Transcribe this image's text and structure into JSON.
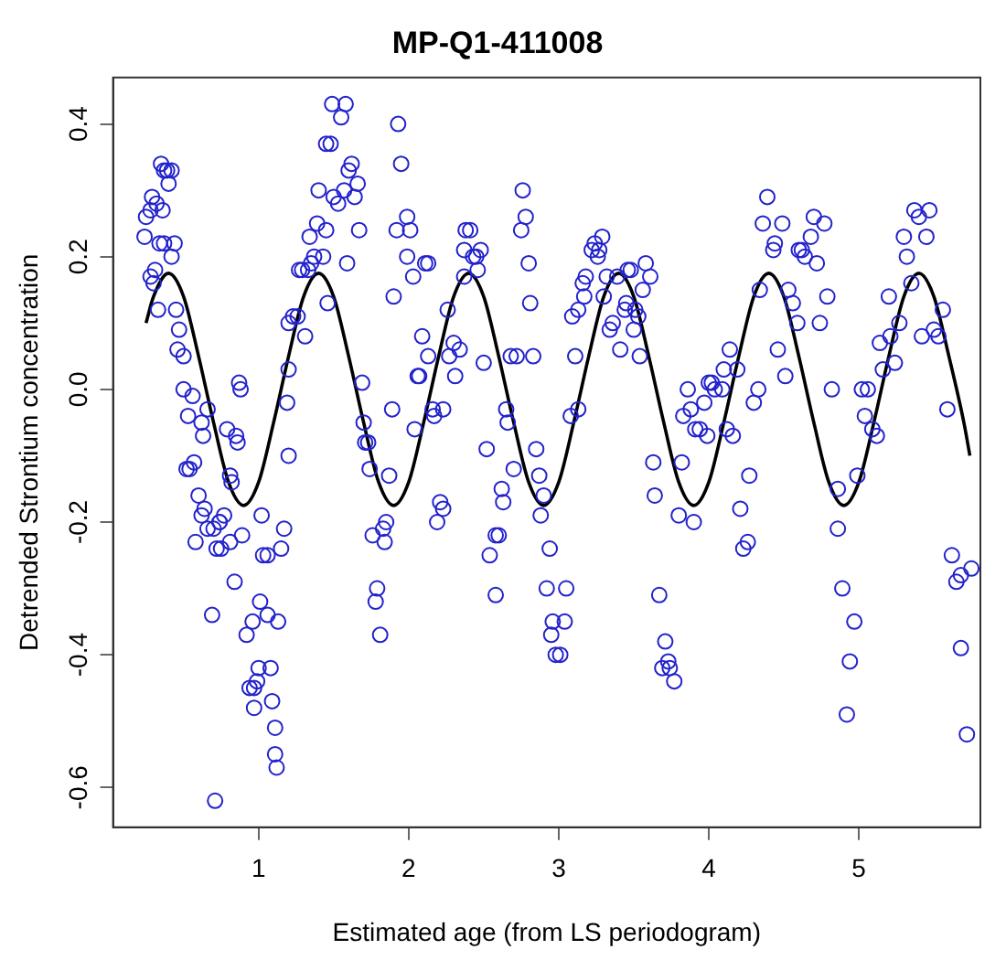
{
  "chart_data": {
    "type": "scatter",
    "title": "MP-Q1-411008",
    "xlabel": "Estimated age (from LS periodogram)",
    "ylabel": "Detrended Strontium concentration",
    "xlim": [
      0.03,
      5.81
    ],
    "ylim": [
      -0.66,
      0.47
    ],
    "xticks": [
      1,
      2,
      3,
      4,
      5
    ],
    "yticks": [
      -0.6,
      -0.4,
      -0.2,
      {
        "value": 0,
        "label": "0.0"
      },
      0.2,
      0.4
    ],
    "grid": false,
    "legend": false,
    "marker": "circle",
    "series": [
      {
        "type": "scatter",
        "color": "#2222cc",
        "x": [
          0.35,
          0.39,
          0.42,
          0.37,
          0.4,
          0.29,
          0.25,
          0.28,
          0.32,
          0.36,
          0.24,
          0.34,
          0.37,
          0.44,
          0.42,
          0.31,
          0.3,
          0.28,
          0.33,
          0.45,
          0.47,
          0.46,
          0.5,
          0.5,
          0.56,
          0.53,
          0.66,
          0.62,
          0.63,
          0.54,
          0.57,
          0.52,
          0.6,
          0.64,
          0.62,
          0.66,
          0.58,
          0.7,
          0.74,
          0.77,
          0.79,
          0.85,
          0.87,
          0.88,
          0.86,
          0.81,
          0.82,
          0.74,
          0.72,
          0.75,
          0.81,
          0.89,
          1.02,
          1.03,
          1.06,
          1.17,
          1.15,
          0.84,
          0.69,
          1.01,
          1.06,
          1.13,
          0.96,
          0.92,
          0.94,
          0.97,
          0.99,
          1.0,
          1.08,
          0.97,
          1.09,
          1.11,
          1.11,
          1.12,
          0.71,
          1.19,
          1.2,
          1.2,
          1.2,
          1.23,
          1.26,
          1.31,
          1.27,
          1.29,
          1.33,
          1.35,
          1.37,
          1.34,
          1.39,
          1.4,
          1.49,
          1.58,
          1.55,
          1.45,
          1.48,
          1.62,
          1.6,
          1.66,
          1.57,
          1.5,
          1.53,
          1.64,
          1.67,
          1.45,
          1.43,
          1.59,
          1.46,
          1.69,
          1.7,
          1.71,
          1.73,
          1.74,
          1.76,
          1.83,
          1.85,
          1.84,
          1.79,
          1.78,
          1.81,
          1.87,
          1.89,
          1.93,
          1.95,
          1.92,
          1.99,
          2.01,
          1.99,
          2.03,
          1.9,
          2.11,
          2.13,
          2.09,
          2.06,
          2.07,
          2.13,
          2.04,
          2.17,
          2.23,
          2.16,
          2.21,
          2.19,
          2.23,
          2.26,
          2.3,
          2.31,
          2.34,
          2.27,
          2.38,
          2.41,
          2.37,
          2.43,
          2.45,
          2.48,
          2.46,
          2.37,
          2.5,
          2.52,
          2.62,
          2.63,
          2.58,
          2.6,
          2.54,
          2.58,
          2.65,
          2.66,
          2.7,
          2.68,
          2.72,
          2.83,
          2.76,
          2.78,
          2.75,
          2.8,
          2.81,
          2.85,
          2.87,
          2.9,
          2.88,
          2.94,
          2.92,
          3.05,
          2.96,
          3.04,
          2.95,
          2.98,
          3.01,
          3.08,
          3.13,
          3.11,
          3.09,
          3.13,
          3.16,
          3.18,
          3.17,
          3.22,
          3.24,
          3.27,
          3.29,
          3.26,
          3.32,
          3.3,
          3.34,
          3.36,
          3.39,
          3.44,
          3.45,
          3.41,
          3.46,
          3.48,
          3.58,
          3.61,
          3.56,
          3.51,
          3.53,
          3.5,
          3.54,
          3.63,
          3.64,
          3.67,
          3.71,
          3.69,
          3.73,
          3.74,
          3.77,
          3.8,
          3.82,
          3.9,
          3.83,
          3.86,
          3.88,
          3.91,
          3.94,
          3.97,
          3.99,
          4.0,
          4.02,
          4.04,
          4.09,
          4.1,
          4.14,
          4.12,
          4.16,
          4.19,
          4.21,
          4.26,
          4.23,
          4.27,
          4.3,
          4.33,
          4.34,
          4.36,
          4.39,
          4.43,
          4.44,
          4.49,
          4.46,
          4.51,
          4.53,
          4.56,
          4.59,
          4.6,
          4.62,
          4.64,
          4.68,
          4.7,
          4.72,
          4.77,
          4.74,
          4.79,
          4.82,
          4.86,
          4.86,
          4.89,
          4.92,
          4.94,
          4.97,
          4.99,
          5.02,
          5.06,
          5.04,
          5.09,
          5.12,
          5.14,
          5.16,
          5.2,
          5.21,
          5.24,
          5.27,
          5.3,
          5.32,
          5.35,
          5.37,
          5.4,
          5.45,
          5.47,
          5.42,
          5.5,
          5.53,
          5.56,
          5.59,
          5.62,
          5.65,
          5.68,
          5.75,
          5.68,
          5.72
        ],
        "values": [
          0.34,
          0.33,
          0.33,
          0.33,
          0.31,
          0.29,
          0.26,
          0.27,
          0.28,
          0.27,
          0.23,
          0.22,
          0.22,
          0.22,
          0.2,
          0.18,
          0.16,
          0.17,
          0.12,
          0.12,
          0.09,
          0.06,
          0.05,
          0.0,
          -0.01,
          -0.04,
          -0.03,
          -0.05,
          -0.07,
          -0.12,
          -0.11,
          -0.12,
          -0.16,
          -0.18,
          -0.19,
          -0.21,
          -0.23,
          -0.21,
          -0.2,
          -0.19,
          -0.06,
          -0.07,
          0.01,
          0.0,
          -0.08,
          -0.13,
          -0.14,
          -0.2,
          -0.24,
          -0.24,
          -0.23,
          -0.22,
          -0.19,
          -0.25,
          -0.25,
          -0.21,
          -0.24,
          -0.29,
          -0.34,
          -0.32,
          -0.34,
          -0.35,
          -0.35,
          -0.37,
          -0.45,
          -0.45,
          -0.44,
          -0.42,
          -0.42,
          -0.48,
          -0.47,
          -0.51,
          -0.55,
          -0.57,
          -0.62,
          -0.02,
          0.03,
          -0.1,
          0.1,
          0.11,
          0.11,
          0.08,
          0.18,
          0.18,
          0.18,
          0.19,
          0.2,
          0.23,
          0.25,
          0.3,
          0.43,
          0.43,
          0.41,
          0.37,
          0.37,
          0.34,
          0.33,
          0.31,
          0.3,
          0.29,
          0.28,
          0.29,
          0.24,
          0.24,
          0.2,
          0.19,
          0.13,
          0.01,
          -0.05,
          -0.08,
          -0.08,
          -0.12,
          -0.22,
          -0.21,
          -0.2,
          -0.23,
          -0.3,
          -0.32,
          -0.37,
          -0.13,
          -0.03,
          0.4,
          0.34,
          0.24,
          0.26,
          0.24,
          0.2,
          0.17,
          0.14,
          0.19,
          0.19,
          0.08,
          0.02,
          0.02,
          0.05,
          -0.06,
          -0.04,
          -0.03,
          -0.03,
          -0.17,
          -0.2,
          -0.18,
          0.12,
          0.07,
          0.02,
          0.06,
          0.05,
          0.24,
          0.24,
          0.21,
          0.2,
          0.2,
          0.21,
          0.18,
          0.17,
          0.04,
          -0.09,
          -0.15,
          -0.17,
          -0.22,
          -0.22,
          -0.25,
          -0.31,
          -0.03,
          -0.05,
          -0.12,
          0.05,
          0.05,
          0.05,
          0.3,
          0.26,
          0.24,
          0.19,
          0.13,
          -0.09,
          -0.13,
          -0.16,
          -0.19,
          -0.24,
          -0.3,
          -0.3,
          -0.35,
          -0.35,
          -0.37,
          -0.4,
          -0.4,
          -0.04,
          -0.03,
          0.05,
          0.11,
          0.12,
          0.16,
          0.17,
          0.14,
          0.21,
          0.22,
          0.21,
          0.23,
          0.2,
          0.17,
          0.14,
          0.09,
          0.1,
          0.17,
          0.12,
          0.13,
          0.06,
          0.18,
          0.18,
          0.19,
          0.17,
          0.15,
          0.12,
          0.11,
          0.09,
          0.05,
          -0.11,
          -0.16,
          -0.31,
          -0.38,
          -0.42,
          -0.41,
          -0.42,
          -0.44,
          -0.19,
          -0.11,
          -0.2,
          -0.04,
          0.0,
          -0.03,
          -0.06,
          -0.06,
          -0.02,
          -0.07,
          0.01,
          0.01,
          0.0,
          0.0,
          0.03,
          0.06,
          -0.06,
          -0.07,
          0.03,
          -0.18,
          -0.23,
          -0.24,
          -0.13,
          -0.02,
          0.0,
          0.15,
          0.25,
          0.29,
          0.21,
          0.22,
          0.25,
          0.06,
          0.02,
          0.15,
          0.13,
          0.1,
          0.21,
          0.21,
          0.2,
          0.23,
          0.26,
          0.19,
          0.25,
          0.1,
          0.14,
          0.0,
          -0.15,
          -0.21,
          -0.3,
          -0.49,
          -0.41,
          -0.35,
          -0.13,
          0.0,
          0.0,
          -0.04,
          -0.06,
          -0.07,
          0.07,
          0.03,
          0.14,
          0.08,
          0.04,
          0.1,
          0.23,
          0.2,
          0.16,
          0.27,
          0.26,
          0.23,
          0.27,
          0.08,
          0.09,
          0.08,
          0.12,
          -0.03,
          -0.25,
          -0.29,
          -0.28,
          -0.27,
          -0.39,
          -0.52
        ]
      },
      {
        "type": "line",
        "color": "#000000",
        "line_style": "solid",
        "marker": "none",
        "x": [
          0.25,
          0.3,
          0.4,
          0.5,
          0.6,
          0.7,
          0.8,
          0.9,
          1.0,
          1.1,
          1.2,
          1.3,
          1.4,
          1.5,
          1.6,
          1.7,
          1.8,
          1.9,
          2.0,
          2.1,
          2.2,
          2.3,
          2.4,
          2.5,
          2.6,
          2.7,
          2.8,
          2.9,
          3.0,
          3.1,
          3.2,
          3.3,
          3.4,
          3.5,
          3.6,
          3.7,
          3.8,
          3.9,
          4.0,
          4.1,
          4.2,
          4.3,
          4.4,
          4.5,
          4.6,
          4.7,
          4.8,
          4.9,
          5.0,
          5.1,
          5.2,
          5.3,
          5.4,
          5.5,
          5.6,
          5.7,
          5.74
        ],
        "values": [
          0.1,
          0.14,
          0.175,
          0.14,
          0.05,
          -0.05,
          -0.14,
          -0.175,
          -0.14,
          -0.05,
          0.05,
          0.14,
          0.175,
          0.14,
          0.05,
          -0.05,
          -0.14,
          -0.175,
          -0.14,
          -0.05,
          0.05,
          0.14,
          0.175,
          0.14,
          0.05,
          -0.05,
          -0.14,
          -0.175,
          -0.14,
          -0.05,
          0.05,
          0.14,
          0.175,
          0.14,
          0.05,
          -0.05,
          -0.14,
          -0.175,
          -0.14,
          -0.05,
          0.05,
          0.14,
          0.175,
          0.14,
          0.05,
          -0.05,
          -0.14,
          -0.175,
          -0.14,
          -0.05,
          0.05,
          0.14,
          0.175,
          0.14,
          0.05,
          -0.05,
          -0.1
        ]
      }
    ]
  }
}
